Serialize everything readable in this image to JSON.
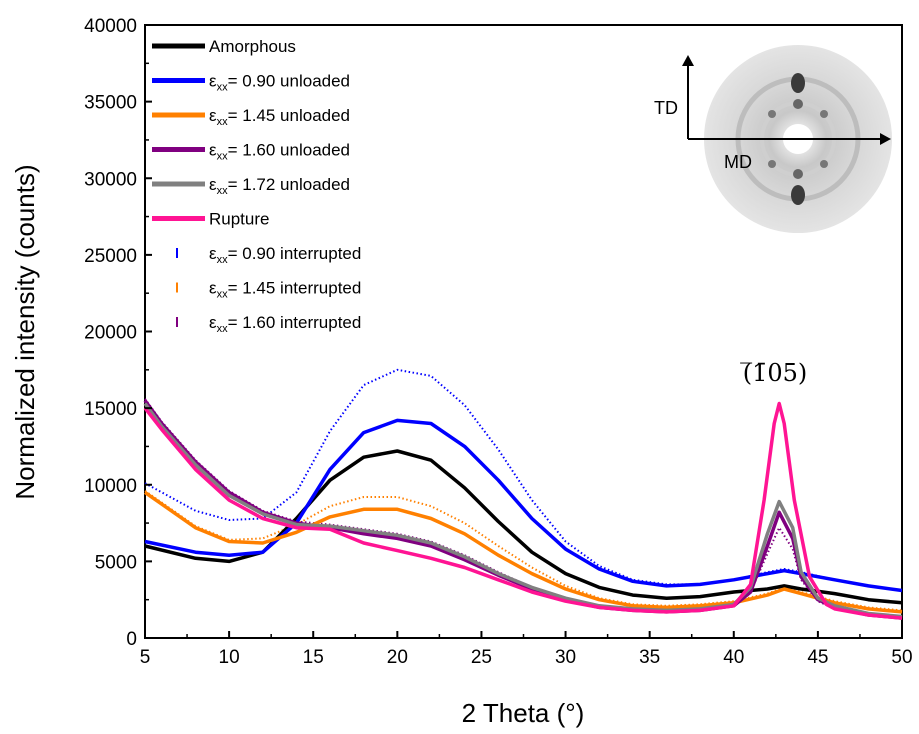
{
  "chart_data": {
    "type": "line",
    "title": "",
    "xlabel": "2 Theta (°)",
    "ylabel": "Normalized intensity (counts)",
    "xlim": [
      5,
      50
    ],
    "ylim": [
      0,
      40000
    ],
    "xticks": [
      5,
      10,
      15,
      20,
      25,
      30,
      35,
      40,
      45,
      50
    ],
    "yticks": [
      0,
      5000,
      10000,
      15000,
      20000,
      25000,
      30000,
      35000,
      40000
    ],
    "legend_position": "top-left",
    "annotation": "(̅1̄05)",
    "annotation_at": [
      42.7,
      16700
    ],
    "inset": {
      "td_label": "TD",
      "md_label": "MD"
    },
    "series": [
      {
        "name": "Amorphous",
        "prefix": "",
        "suffix": "",
        "style": "line",
        "color": "#000000",
        "x": [
          5,
          8,
          10,
          12,
          14,
          16,
          18,
          20,
          22,
          24,
          26,
          28,
          30,
          32,
          34,
          36,
          38,
          40,
          42,
          43,
          44,
          46,
          48,
          50
        ],
        "y": [
          6000,
          5200,
          5000,
          5600,
          7800,
          10300,
          11800,
          12200,
          11600,
          9800,
          7600,
          5600,
          4200,
          3300,
          2800,
          2600,
          2700,
          3000,
          3200,
          3400,
          3200,
          2900,
          2500,
          2300
        ]
      },
      {
        "name": "",
        "prefix": "ε",
        "sub": "xx",
        "suffix": "= 0.90 unloaded",
        "style": "line",
        "color": "#0000ff",
        "x": [
          5,
          8,
          10,
          12,
          14,
          16,
          18,
          20,
          22,
          24,
          26,
          28,
          30,
          32,
          34,
          36,
          38,
          40,
          42,
          43,
          44,
          46,
          48,
          50
        ],
        "y": [
          6300,
          5600,
          5400,
          5600,
          7500,
          11000,
          13400,
          14200,
          14000,
          12500,
          10300,
          7800,
          5800,
          4500,
          3700,
          3400,
          3500,
          3800,
          4200,
          4400,
          4200,
          3800,
          3400,
          3100
        ]
      },
      {
        "name": "",
        "prefix": "ε",
        "sub": "xx",
        "suffix": "= 1.45 unloaded",
        "style": "line",
        "color": "#ff8000",
        "x": [
          5,
          8,
          10,
          12,
          14,
          16,
          18,
          20,
          22,
          24,
          26,
          28,
          30,
          32,
          34,
          36,
          38,
          40,
          42,
          43,
          44,
          46,
          48,
          50
        ],
        "y": [
          9500,
          7200,
          6300,
          6200,
          6900,
          7900,
          8400,
          8400,
          7800,
          6800,
          5400,
          4200,
          3200,
          2500,
          2100,
          2000,
          2100,
          2300,
          2800,
          3200,
          2900,
          2300,
          1900,
          1700
        ]
      },
      {
        "name": "",
        "prefix": "ε",
        "sub": "xx",
        "suffix": "= 1.60 unloaded",
        "style": "line",
        "color": "#800080",
        "x": [
          5,
          6,
          8,
          10,
          12,
          14,
          16,
          18,
          20,
          22,
          24,
          26,
          28,
          30,
          32,
          34,
          36,
          38,
          40,
          41,
          42,
          42.7,
          43.5,
          44,
          45,
          46,
          48,
          50
        ],
        "y": [
          15500,
          14000,
          11500,
          9500,
          8200,
          7500,
          7200,
          6800,
          6500,
          6000,
          5100,
          4100,
          3200,
          2500,
          2000,
          1800,
          1700,
          1800,
          2100,
          3000,
          6000,
          8200,
          6500,
          4000,
          2500,
          2000,
          1500,
          1300
        ]
      },
      {
        "name": "",
        "prefix": "ε",
        "sub": "xx",
        "suffix": "= 1.72 unloaded",
        "style": "line",
        "color": "#808080",
        "x": [
          5,
          6,
          8,
          10,
          12,
          14,
          16,
          18,
          20,
          22,
          24,
          26,
          28,
          30,
          32,
          34,
          36,
          38,
          40,
          41,
          42,
          42.7,
          43.5,
          44,
          45,
          46,
          48,
          50
        ],
        "y": [
          15300,
          13800,
          11300,
          9300,
          8100,
          7400,
          7300,
          7000,
          6700,
          6200,
          5300,
          4200,
          3300,
          2600,
          2100,
          1900,
          1800,
          1900,
          2200,
          3300,
          6800,
          8900,
          7200,
          4300,
          2600,
          2100,
          1600,
          1400
        ]
      },
      {
        "name": "Rupture",
        "prefix": "",
        "suffix": "",
        "style": "line",
        "color": "#ff1493",
        "x": [
          5,
          6,
          8,
          10,
          12,
          14,
          16,
          18,
          20,
          22,
          24,
          26,
          28,
          30,
          32,
          34,
          36,
          38,
          40,
          41,
          41.8,
          42.4,
          42.7,
          43.0,
          43.6,
          44.5,
          45.5,
          46,
          48,
          50
        ],
        "y": [
          15000,
          13600,
          11000,
          9000,
          7800,
          7200,
          7100,
          6200,
          5700,
          5200,
          4600,
          3800,
          3000,
          2400,
          2000,
          1800,
          1700,
          1800,
          2100,
          3500,
          9000,
          14000,
          15300,
          14000,
          9000,
          4000,
          2200,
          1900,
          1500,
          1300
        ]
      },
      {
        "name": "",
        "prefix": "ε",
        "sub": "xx",
        "suffix": "= 0.90 interrupted",
        "style": "dash",
        "color": "#0000ff",
        "x": [
          5,
          8,
          10,
          12,
          14,
          16,
          18,
          20,
          22,
          24,
          26,
          28,
          30,
          32,
          34,
          36,
          38,
          40,
          42,
          43,
          44,
          46,
          48,
          50
        ],
        "y": [
          10100,
          8300,
          7700,
          7800,
          9500,
          13500,
          16500,
          17500,
          17100,
          15200,
          12300,
          9000,
          6300,
          4700,
          3800,
          3500,
          3500,
          3800,
          4300,
          4500,
          4300,
          3800,
          3400,
          3100
        ]
      },
      {
        "name": "",
        "prefix": "ε",
        "sub": "xx",
        "suffix": "= 1.45 interrupted",
        "style": "dash",
        "color": "#ff8000",
        "x": [
          5,
          8,
          10,
          12,
          14,
          16,
          18,
          20,
          22,
          24,
          26,
          28,
          30,
          32,
          34,
          36,
          38,
          40,
          42,
          43,
          44,
          46,
          48,
          50
        ],
        "y": [
          9600,
          7300,
          6400,
          6500,
          7400,
          8600,
          9200,
          9200,
          8600,
          7500,
          6000,
          4600,
          3400,
          2600,
          2200,
          2100,
          2200,
          2400,
          2900,
          3300,
          3000,
          2400,
          2000,
          1800
        ]
      },
      {
        "name": "",
        "prefix": "ε",
        "sub": "xx",
        "suffix": "= 1.60 interrupted",
        "style": "dash",
        "color": "#800080",
        "x": [
          5,
          6,
          8,
          10,
          12,
          14,
          16,
          18,
          20,
          22,
          24,
          26,
          28,
          30,
          32,
          34,
          36,
          38,
          40,
          41,
          42,
          42.7,
          43.5,
          44,
          45,
          46,
          48,
          50
        ],
        "y": [
          15600,
          14100,
          11600,
          9600,
          8300,
          7600,
          7400,
          7100,
          6800,
          6300,
          5400,
          4300,
          3300,
          2600,
          2100,
          1900,
          1800,
          1900,
          2200,
          3000,
          5500,
          7200,
          5800,
          3800,
          2400,
          1900,
          1500,
          1300
        ]
      }
    ]
  }
}
